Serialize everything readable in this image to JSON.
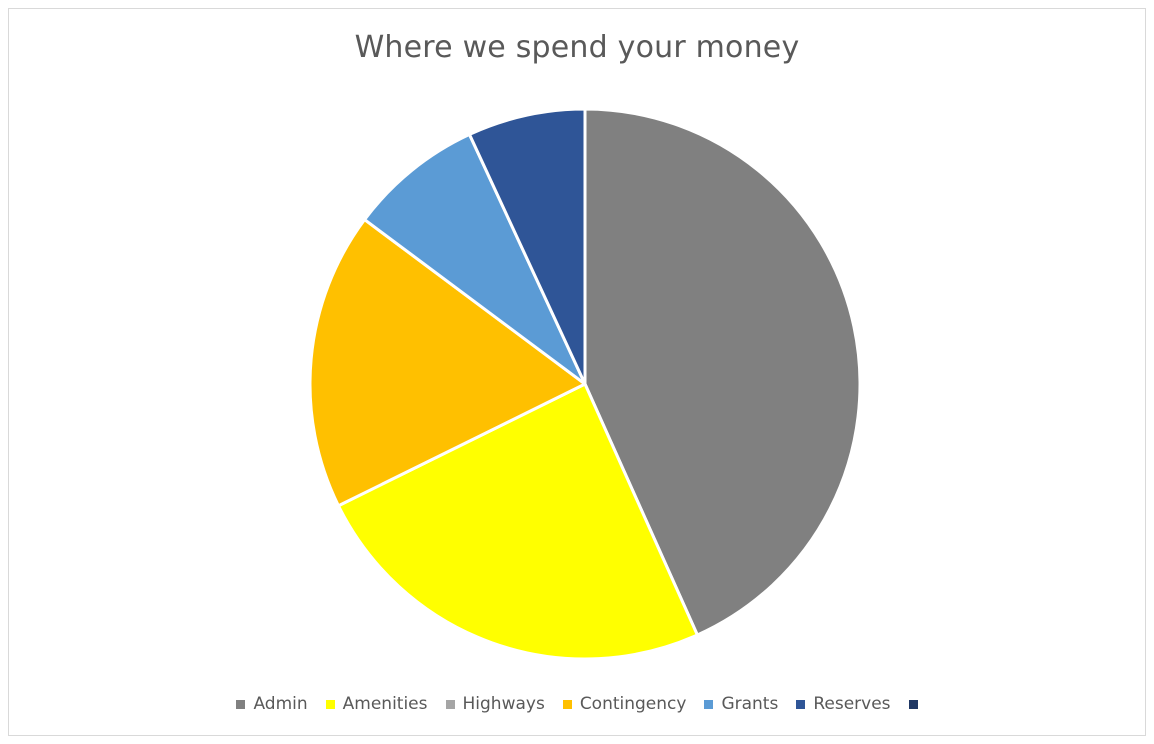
{
  "chart_data": {
    "type": "pie",
    "title": "Where we spend your money",
    "categories": [
      "Admin",
      "Amenities",
      "Highways",
      "Contingency",
      "Grants",
      "Reserves",
      ""
    ],
    "values": [
      43.3,
      24.4,
      0,
      17.5,
      7.9,
      6.9,
      0
    ],
    "colors": [
      "#808080",
      "#ffff00",
      "#a5a5a5",
      "#ffc000",
      "#5b9bd5",
      "#2f5597",
      "#203864"
    ],
    "legend_position": "bottom",
    "start_angle_deg": 0,
    "direction": "clockwise"
  }
}
